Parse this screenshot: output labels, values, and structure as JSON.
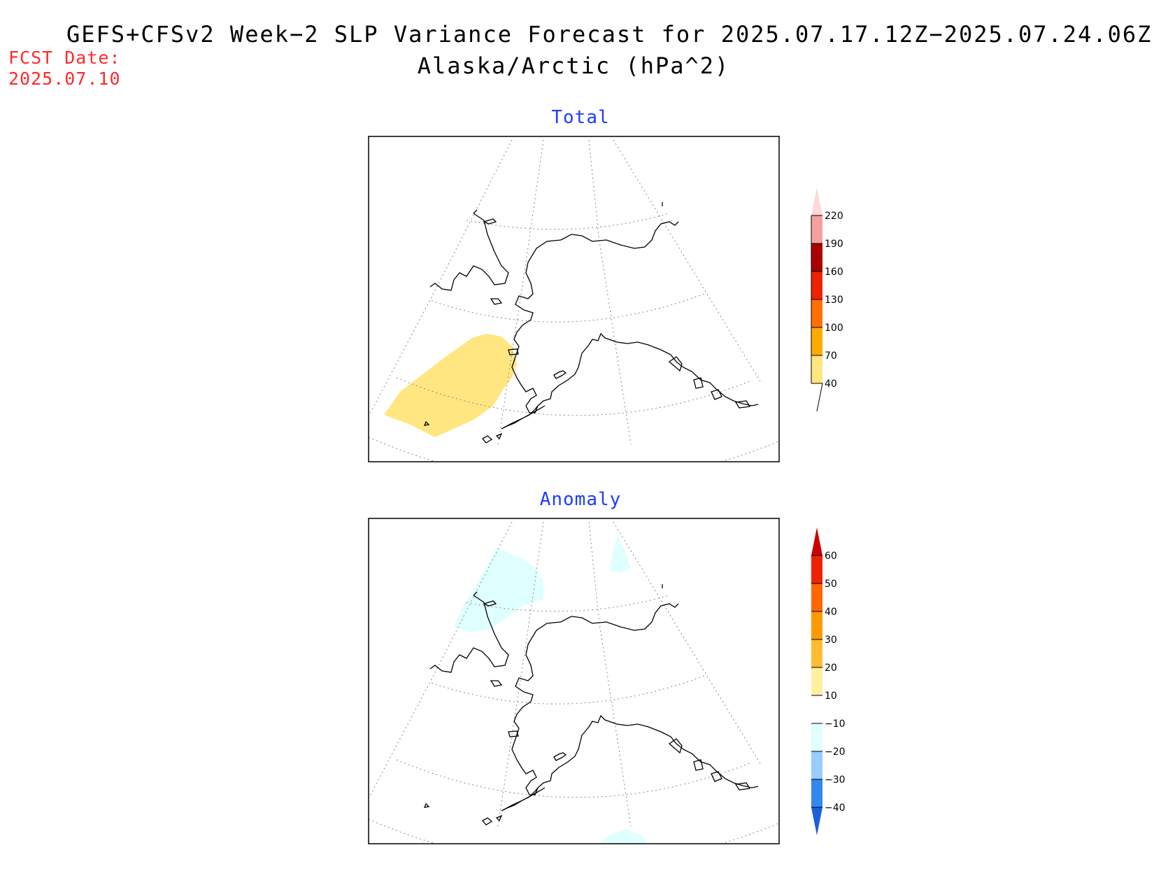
{
  "title_line1": "GEFS+CFSv2 Week−2 SLP Variance Forecast for 2025.07.17.12Z−2025.07.24.06Z",
  "title_line2": "Alaska/Arctic (hPa^2)",
  "fcst_label": "FCST Date:",
  "fcst_date": "2025.07.10",
  "panels": [
    {
      "title": "Total",
      "colorbar": {
        "levels": [
          "40",
          "70",
          "100",
          "130",
          "160",
          "190",
          "220"
        ],
        "colors": [
          "#ffe680",
          "#ffaa00",
          "#ff7000",
          "#ee2200",
          "#aa0000",
          "#f4a0a0",
          "#ffd8d8"
        ]
      },
      "shading": [
        {
          "category": "40-70",
          "color": "#ffe680"
        }
      ]
    },
    {
      "title": "Anomaly",
      "colorbar": {
        "levels": [
          "60",
          "50",
          "40",
          "30",
          "20",
          "10",
          "−10",
          "−20",
          "−30",
          "−40"
        ],
        "colors_top_down": [
          "#cc0000",
          "#ee2200",
          "#ff6600",
          "#ff9900",
          "#ffbb33",
          "#fff0a0",
          "#ffffff",
          "#e0ffff",
          "#99ccff",
          "#3388ee",
          "#1a5fdd"
        ]
      },
      "shading": [
        {
          "category": "-10 to -20",
          "color": "#e0ffff"
        }
      ]
    }
  ]
}
